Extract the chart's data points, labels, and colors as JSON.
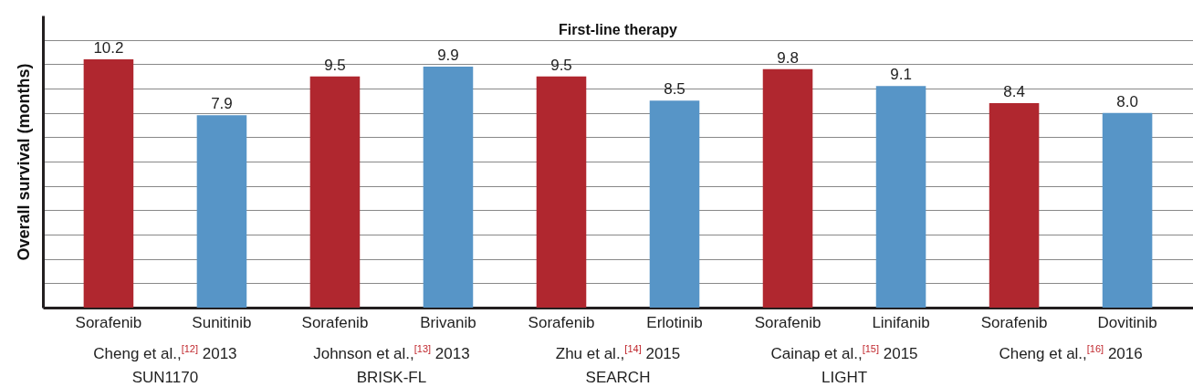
{
  "chart_data": {
    "type": "bar",
    "title": "First-line therapy",
    "ylabel": "Overall survival (months)",
    "categories": [
      "Sorafenib",
      "Sunitinib",
      "Sorafenib",
      "Brivanib",
      "Sorafenib",
      "Erlotinib",
      "Sorafenib",
      "Linifanib",
      "Sorafenib",
      "Dovitinib"
    ],
    "values": [
      10.2,
      7.9,
      9.5,
      9.9,
      9.5,
      8.5,
      9.8,
      9.1,
      8.4,
      8.0
    ],
    "value_labels": [
      "10.2",
      "7.9",
      "9.5",
      "9.9",
      "9.5",
      "8.5",
      "9.8",
      "9.1",
      "8.4",
      "8.0"
    ],
    "colors": [
      "#b0272f",
      "#5795c7",
      "#b0272f",
      "#5795c7",
      "#b0272f",
      "#5795c7",
      "#b0272f",
      "#5795c7",
      "#b0272f",
      "#5795c7"
    ],
    "ylim": [
      0,
      12
    ],
    "yticks": [
      {
        "value": 0,
        "label": null
      },
      {
        "value": 1,
        "label": null
      },
      {
        "value": 2,
        "label": null
      },
      {
        "value": 3,
        "label": null
      },
      {
        "value": 4,
        "label": null
      },
      {
        "value": 5,
        "label": null
      },
      {
        "value": 6,
        "label": null
      },
      {
        "value": 7,
        "label": null
      },
      {
        "value": 8,
        "label": null
      },
      {
        "value": 9,
        "label": null
      },
      {
        "value": 10,
        "label": null
      },
      {
        "value": 11,
        "label": null
      }
    ],
    "grid": "y",
    "tick_labels": "x",
    "annotations": [
      "Cheng et al.,$^{[12]}$ 2013\nSUN1170",
      "Johnson et al.,$^{[13]}$ 2013\nBRISK-FL",
      "Zhu et al.,$^{[14]}$ 2015\nSEARCH",
      "Cainap et al.,$^{[15]}$ 2015\nLIGHT",
      "Cheng et al.,$^{[16]}$ 2016"
    ]
  }
}
